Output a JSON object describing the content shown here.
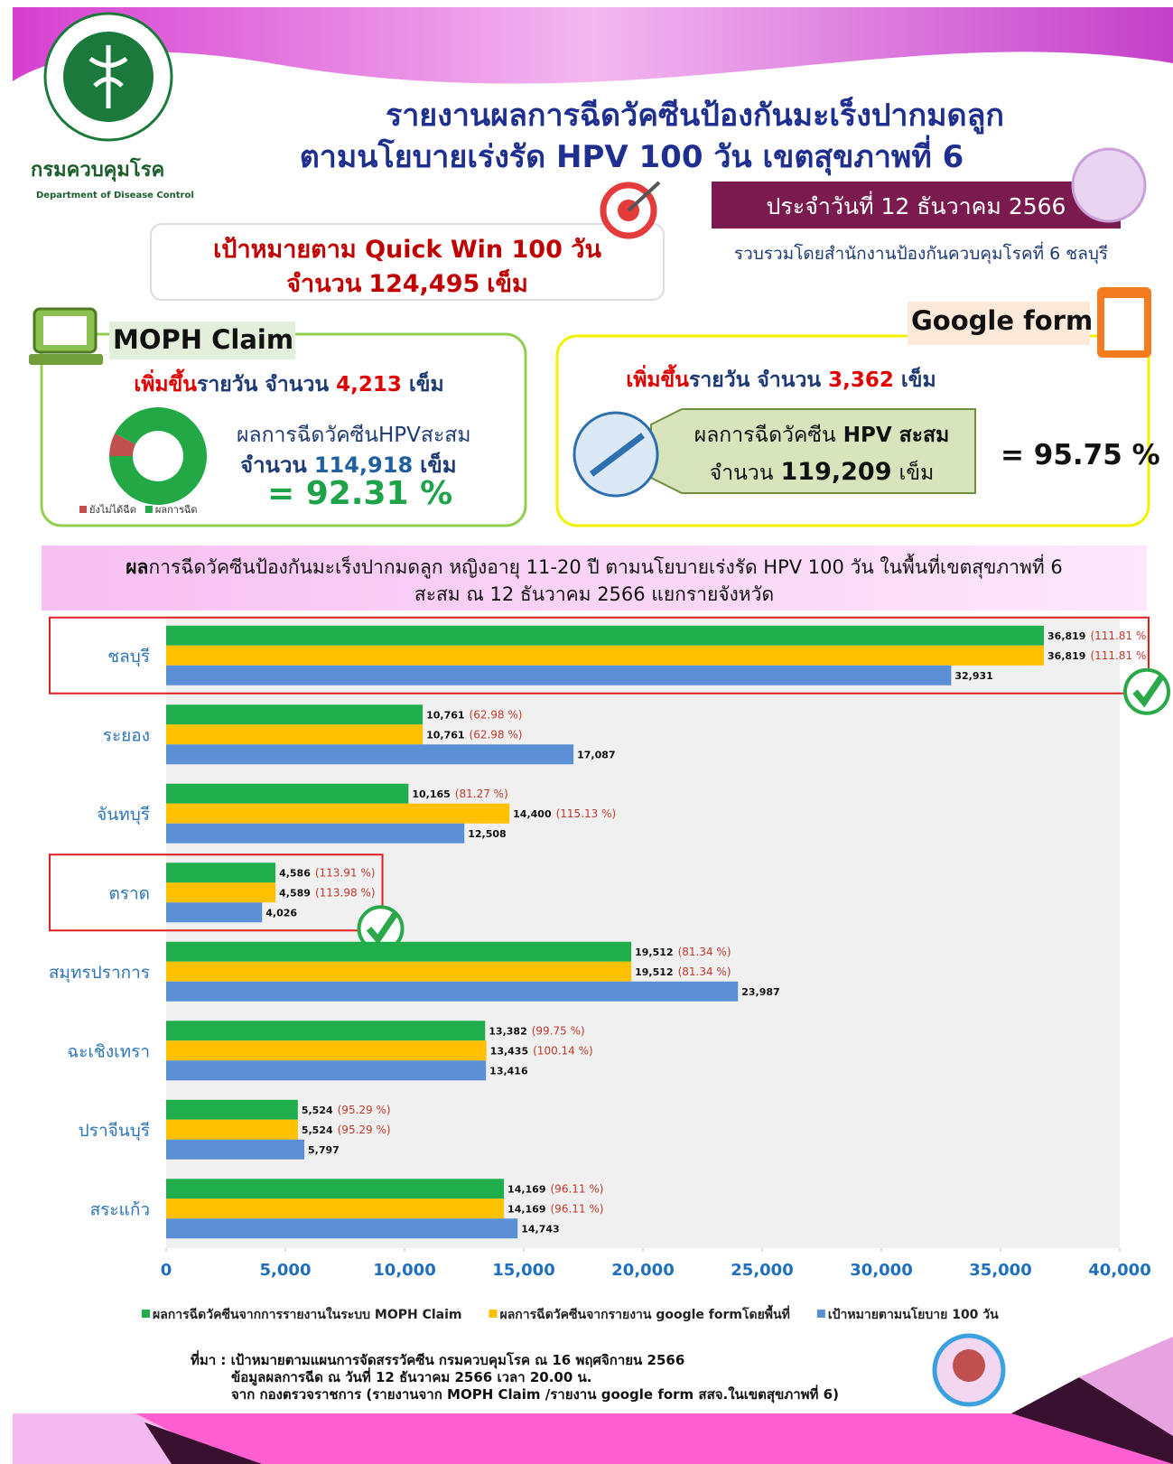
{
  "header": {
    "title_line1": "รายงานผลการฉีดวัคซีนป้องกันมะเร็งปากมดลูก",
    "title_line2": "ตามนโยบายเร่งรัด HPV 100 วัน  เขตสุขภาพที่ 6",
    "org_th": "กรมควบคุมโรค",
    "org_en": "Department of Disease Control",
    "date": "ประจำวันที่ 12 ธันวาคม 2566",
    "compiled_by": "รวบรวมโดยสำนักงานป้องกันควบคุมโรคที่ 6 ชลบุรี"
  },
  "target": {
    "line1": "เป้าหมายตาม Quick Win 100 วัน",
    "line2_prefix": "จำนวน",
    "amount": "124,495",
    "unit": "เข็ม"
  },
  "moph": {
    "title": "MOPH Claim",
    "daily": {
      "highlight": "เพิ่มขึ้น",
      "text": "รายวัน จำนวน",
      "amount": "4,213",
      "unit": "เข็ม"
    },
    "cumulative_label": "ผลการฉีดวัคซีนHPVสะสม",
    "cumulative": {
      "prefix": "จำนวน",
      "amount": "114,918",
      "unit": "เข็ม"
    },
    "percent": "= 92.31 %"
  },
  "google": {
    "title": "Google form",
    "daily": {
      "highlight": "เพิ่มขึ้น",
      "text": "รายวัน จำนวน",
      "amount": "3,362",
      "unit": "เข็ม"
    },
    "cumulative_label": {
      "prefix": "ผลการฉีดวัคซีน",
      "bold": "HPV สะสม"
    },
    "cumulative": {
      "prefix": "จำนวน",
      "amount": "119,209",
      "unit": "เข็ม"
    },
    "percent": "= 95.75 %"
  },
  "chart_data": [
    {
      "type": "bar",
      "orientation": "horizontal",
      "title": {
        "bold": "ผล",
        "rest": "การฉีดวัคซีนป้องกันมะเร็งปากมดลูก หญิงอายุ 11-20 ปี ตามนโยบายเร่งรัด HPV 100 วัน ในพื้นที่เขตสุขภาพที่ 6"
      },
      "subtitle": "สะสม ณ 12 ธันวาคม 2566  แยกรายจังหวัด",
      "categories": [
        "ชลบุรี",
        "ระยอง",
        "จันทบุรี",
        "ตราด",
        "สมุทรปราการ",
        "ฉะเชิงเทรา",
        "ปราจีนบุรี",
        "สระแก้ว"
      ],
      "highlight": [
        true,
        false,
        false,
        true,
        false,
        false,
        false,
        false
      ],
      "series": [
        {
          "name": "ผลการฉีดวัคซีนจากการรายงานในระบบ MOPH Claim",
          "color": "#1fae4b",
          "values": [
            36819,
            10761,
            10165,
            4586,
            19512,
            13382,
            5524,
            14169
          ],
          "value_labels": [
            "36,819",
            "10,761",
            "10,165",
            "4,586",
            "19,512",
            "13,382",
            "5,524",
            "14,169"
          ],
          "percent_labels": [
            "(111.81 %)",
            "(62.98 %)",
            "(81.27 %)",
            "(113.91 %)",
            "(81.34 %)",
            "(99.75 %)",
            "(95.29 %)",
            "(96.11 %)"
          ]
        },
        {
          "name": "ผลการฉีดวัคซีนจากรายงาน google formโดยพื้นที่",
          "color": "#ffc000",
          "values": [
            36819,
            10761,
            14400,
            4589,
            19512,
            13435,
            5524,
            14169
          ],
          "value_labels": [
            "36,819",
            "10,761",
            "14,400",
            "4,589",
            "19,512",
            "13,435",
            "5,524",
            "14,169"
          ],
          "percent_labels": [
            "(111.81 %)",
            "(62.98 %)",
            "(115.13 %)",
            "(113.98 %)",
            "(81.34 %)",
            "(100.14 %)",
            "(95.29 %)",
            "(96.11 %)"
          ]
        },
        {
          "name": "เป้าหมายตามนโยบาย 100 วัน",
          "color": "#5b8fd6",
          "values": [
            32931,
            17087,
            12508,
            4026,
            23987,
            13416,
            5797,
            14743
          ],
          "value_labels": [
            "32,931",
            "17,087",
            "12,508",
            "4,026",
            "23,987",
            "13,416",
            "5,797",
            "14,743"
          ]
        }
      ],
      "xlim": [
        0,
        40000
      ],
      "xticks": [
        0,
        {
          "value": 5000,
          "label": "5,000"
        },
        {
          "value": 10000,
          "label": "10,000"
        },
        {
          "value": 15000,
          "label": "15,000"
        },
        {
          "value": 20000,
          "label": "20,000"
        },
        {
          "value": 25000,
          "label": "25,000"
        },
        {
          "value": 30000,
          "label": "30,000"
        },
        {
          "value": 35000,
          "label": "35,000"
        },
        {
          "value": 40000,
          "label": "40,000"
        }
      ],
      "grid": false
    },
    {
      "type": "pie",
      "categories": [
        "ยังไม่ได้ฉีด",
        "ผลการฉีด"
      ],
      "values": [
        7.69,
        92.31
      ],
      "colors": [
        "#c0504d",
        "#22a845"
      ]
    }
  ],
  "footer": {
    "line1": "ที่มา : เป้าหมายตามแผนการจัดสรรวัคซีน กรมควบคุมโรค ณ 16 พฤศจิกายน 2566",
    "line2": "ข้อมูลผลการฉีด ณ วันที่ 12 ธันวาคม 2566  เวลา 20.00 น.",
    "line3": "จาก กองตรวจราชการ (รายงานจาก  MOPH Claim /รายงาน google form  สสจ.ในเขตสุขภาพที่ 6)"
  }
}
